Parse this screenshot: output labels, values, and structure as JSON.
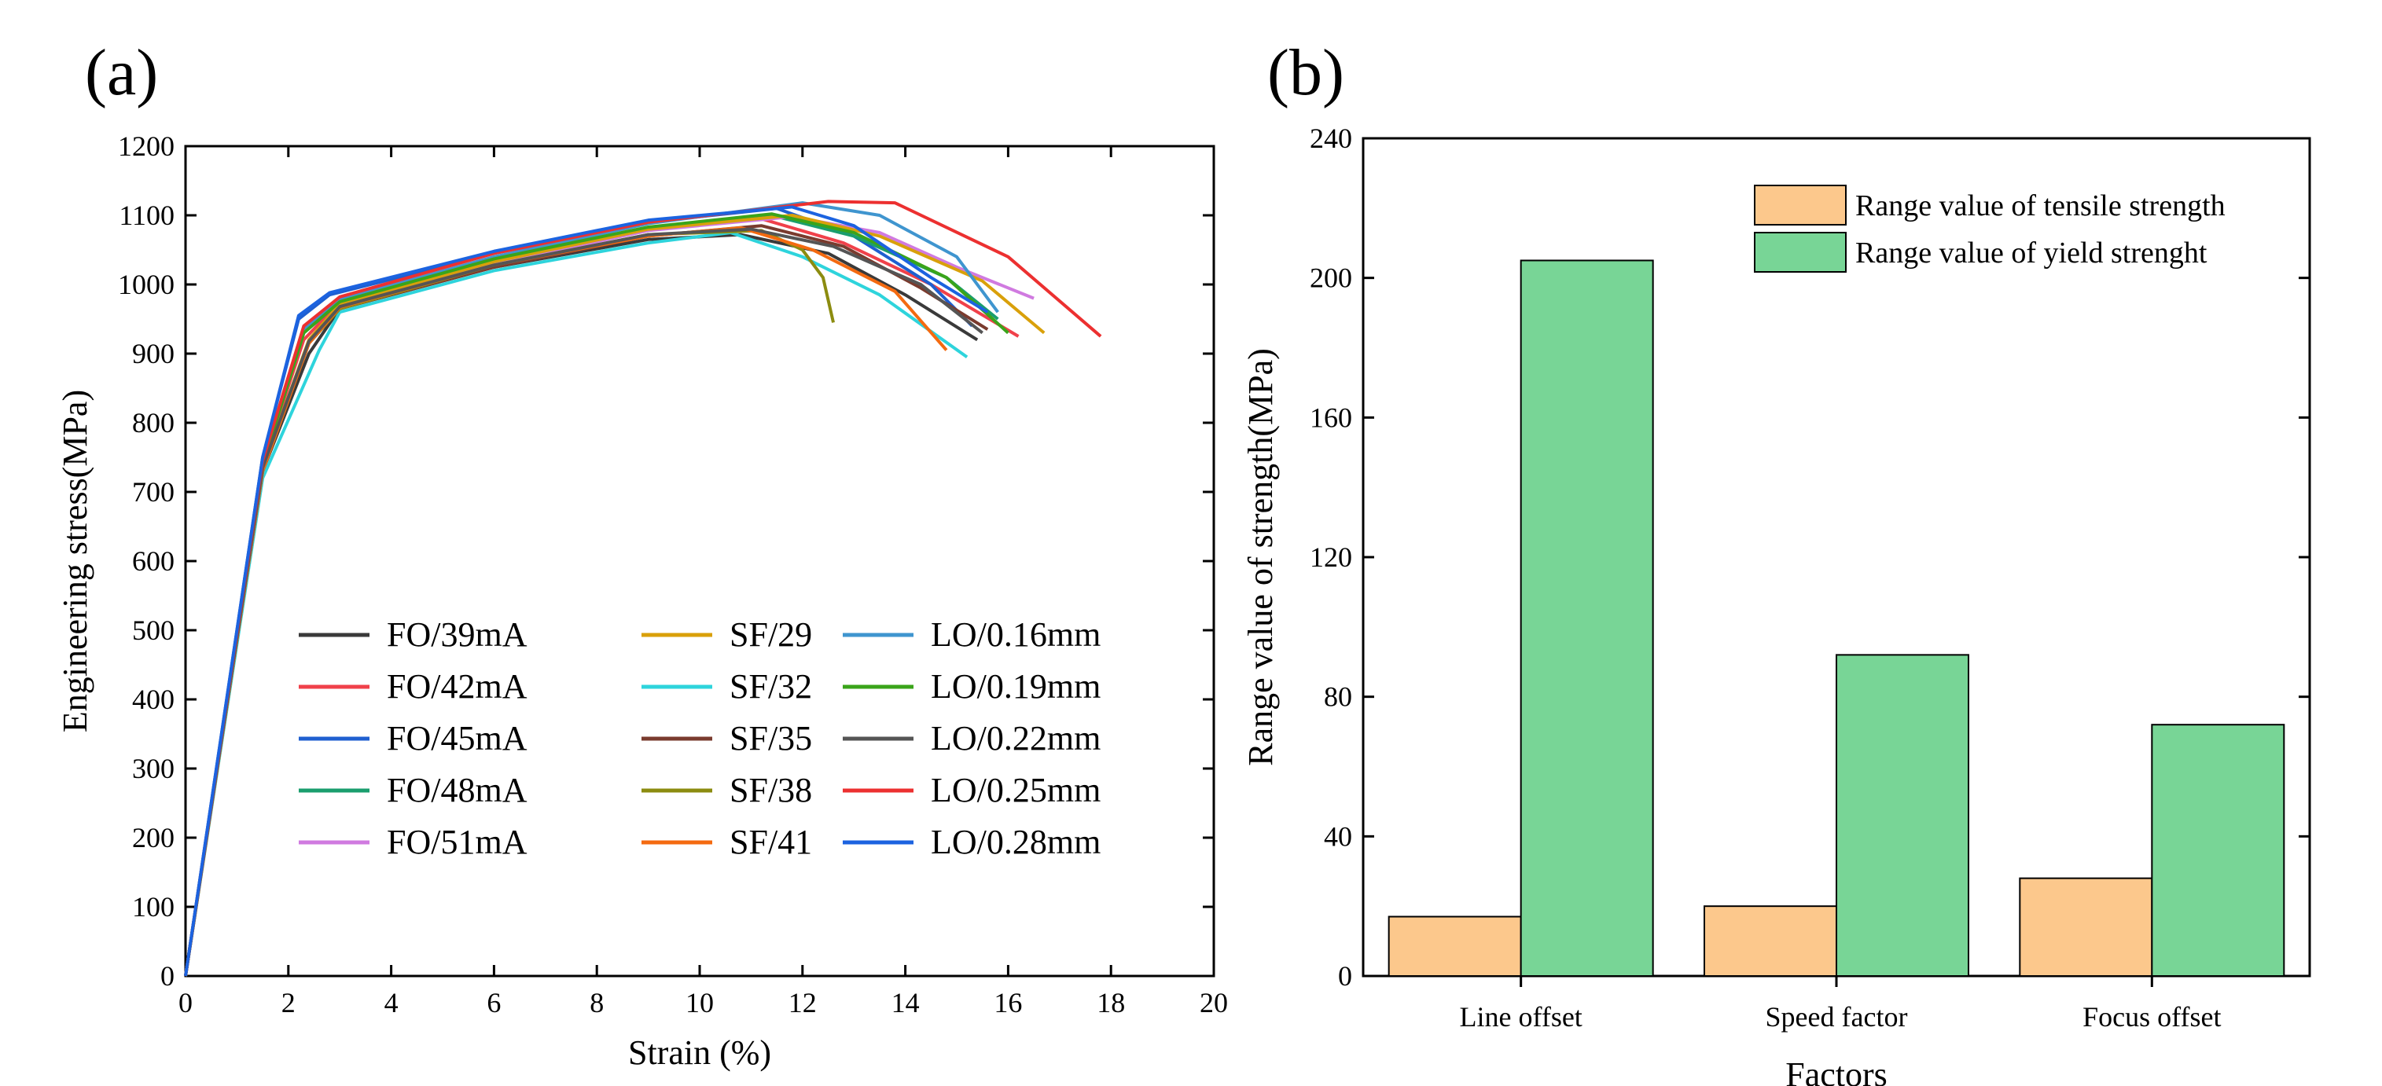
{
  "panels": {
    "a_label": "(a)",
    "b_label": "(b)"
  },
  "chart_data": [
    {
      "type": "line",
      "title": "",
      "xlabel": "Strain (%)",
      "ylabel": "Engineering stress(MPa)",
      "xlim": [
        0,
        20
      ],
      "ylim": [
        0,
        1200
      ],
      "xticks": [
        0,
        2,
        4,
        6,
        8,
        10,
        12,
        14,
        16,
        18,
        20
      ],
      "yticks": [
        0,
        100,
        200,
        300,
        400,
        500,
        600,
        700,
        800,
        900,
        1000,
        1100,
        1200
      ],
      "legend_position": "bottom-center",
      "series": [
        {
          "name": "FO/39mA",
          "color": "#3a3a3a",
          "x": [
            0,
            1.5,
            2.4,
            3,
            6,
            9,
            10.8,
            12.5,
            14,
            15.4
          ],
          "y": [
            0,
            730,
            900,
            965,
            1025,
            1065,
            1072,
            1045,
            985,
            920
          ]
        },
        {
          "name": "FO/42mA",
          "color": "#f0414a",
          "x": [
            0,
            1.5,
            2.3,
            3,
            6,
            9,
            11.2,
            12.8,
            14.5,
            16.2
          ],
          "y": [
            0,
            740,
            920,
            975,
            1035,
            1080,
            1095,
            1060,
            1000,
            925
          ]
        },
        {
          "name": "FO/45mA",
          "color": "#1f5fd0",
          "x": [
            0,
            1.5,
            2.2,
            2.8,
            6,
            9,
            11.5,
            13,
            14.5,
            15.3
          ],
          "y": [
            0,
            750,
            950,
            985,
            1045,
            1090,
            1110,
            1070,
            1000,
            940
          ]
        },
        {
          "name": "FO/48mA",
          "color": "#1a9e6e",
          "x": [
            0,
            1.5,
            2.3,
            3,
            6,
            9,
            11.4,
            13,
            14.8,
            15.8
          ],
          "y": [
            0,
            740,
            930,
            975,
            1035,
            1082,
            1100,
            1070,
            1010,
            950
          ]
        },
        {
          "name": "FO/51mA",
          "color": "#d07ae0",
          "x": [
            0,
            1.5,
            2.4,
            3,
            6,
            9,
            11.8,
            13.5,
            15,
            16.5
          ],
          "y": [
            0,
            735,
            915,
            970,
            1030,
            1078,
            1098,
            1075,
            1025,
            980
          ]
        },
        {
          "name": "SF/29",
          "color": "#d9a00a",
          "x": [
            0,
            1.5,
            2.4,
            3,
            6,
            9,
            11.8,
            13.5,
            15.5,
            16.7
          ],
          "y": [
            0,
            735,
            920,
            972,
            1033,
            1080,
            1100,
            1070,
            1005,
            930
          ]
        },
        {
          "name": "SF/32",
          "color": "#2ed4dc",
          "x": [
            0,
            1.5,
            2.6,
            3,
            6,
            9,
            10.6,
            12,
            13.5,
            15.2
          ],
          "y": [
            0,
            720,
            905,
            960,
            1020,
            1060,
            1075,
            1040,
            985,
            895
          ]
        },
        {
          "name": "SF/35",
          "color": "#7a3b2e",
          "x": [
            0,
            1.5,
            2.4,
            3,
            6,
            9,
            11.2,
            12.8,
            14.3,
            15.6
          ],
          "y": [
            0,
            730,
            915,
            965,
            1025,
            1070,
            1085,
            1055,
            995,
            935
          ]
        },
        {
          "name": "SF/38",
          "color": "#8c8c10",
          "x": [
            0,
            1.5,
            2.4,
            3,
            6,
            9,
            11.2,
            12,
            12.4,
            12.6
          ],
          "y": [
            0,
            730,
            915,
            965,
            1028,
            1072,
            1078,
            1050,
            1010,
            945
          ]
        },
        {
          "name": "SF/41",
          "color": "#f46a10",
          "x": [
            0,
            1.5,
            2.4,
            3,
            6,
            9,
            10.8,
            12.2,
            13.8,
            14.8
          ],
          "y": [
            0,
            730,
            915,
            967,
            1028,
            1070,
            1082,
            1050,
            990,
            905
          ]
        },
        {
          "name": "LO/0.16mm",
          "color": "#3f95cf",
          "x": [
            0,
            1.5,
            2.3,
            3,
            6,
            9,
            12,
            13.5,
            15,
            15.8
          ],
          "y": [
            0,
            745,
            935,
            978,
            1040,
            1088,
            1118,
            1100,
            1040,
            960
          ]
        },
        {
          "name": "LO/0.19mm",
          "color": "#3aa41a",
          "x": [
            0,
            1.5,
            2.3,
            3,
            6,
            9,
            11.4,
            13,
            14.8,
            16
          ],
          "y": [
            0,
            740,
            930,
            975,
            1037,
            1083,
            1102,
            1075,
            1010,
            930
          ]
        },
        {
          "name": "LO/0.22mm",
          "color": "#555555",
          "x": [
            0,
            1.5,
            2.4,
            3,
            6,
            9,
            11,
            12.6,
            14.3,
            15.5
          ],
          "y": [
            0,
            735,
            918,
            968,
            1028,
            1072,
            1080,
            1055,
            1000,
            930
          ]
        },
        {
          "name": "LO/0.25mm",
          "color": "#ec3030",
          "x": [
            0,
            1.5,
            2.3,
            3,
            6,
            9,
            12.5,
            13.8,
            16,
            17.8
          ],
          "y": [
            0,
            745,
            940,
            982,
            1045,
            1090,
            1120,
            1118,
            1040,
            925
          ]
        },
        {
          "name": "LO/0.28mm",
          "color": "#1c63e0",
          "x": [
            0,
            1.5,
            2.2,
            2.8,
            6,
            9,
            11.8,
            13,
            14.5,
            15.6
          ],
          "y": [
            0,
            750,
            955,
            988,
            1048,
            1093,
            1112,
            1085,
            1010,
            960
          ]
        }
      ]
    },
    {
      "type": "bar",
      "title": "",
      "xlabel": "Factors",
      "ylabel": "Range value of strength(MPa)",
      "ylim": [
        0,
        240
      ],
      "yticks": [
        0,
        40,
        80,
        120,
        160,
        200,
        240
      ],
      "categories": [
        "Line offset",
        "Speed factor",
        "Focus offset"
      ],
      "legend_position": "top-right",
      "series": [
        {
          "name": "Range value of tensile strength",
          "color": "#fcc88c",
          "values": [
            17,
            20,
            28
          ]
        },
        {
          "name": "Range value of yield strenght",
          "color": "#78d596",
          "values": [
            205,
            92,
            72
          ]
        }
      ]
    }
  ]
}
